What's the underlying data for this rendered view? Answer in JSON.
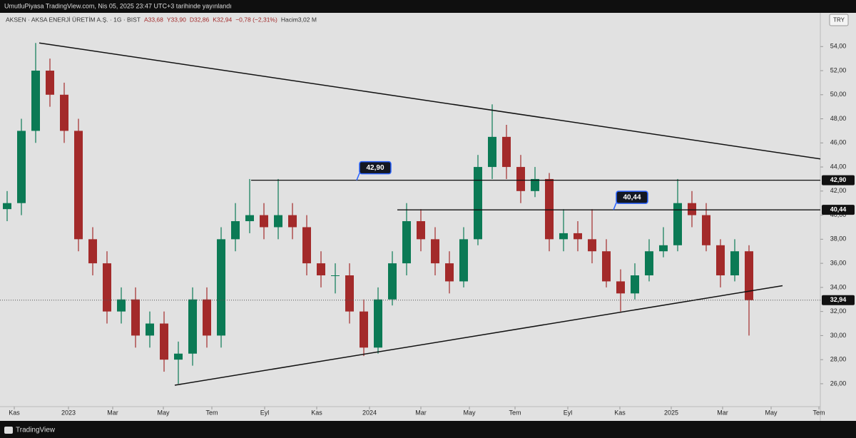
{
  "top_bar": "UmutluPiyasa TradingView.com, Nis 05, 2025 23:47 UTC+3 tarihinde yayınlandı",
  "brand": "TradingView",
  "chart_data": {
    "type": "candlestick",
    "symbol": "AKSEN · AKSA ENERJİ ÜRETİM A.Ş. · 1G · BIST",
    "ohlc_text": [
      "A33,68",
      "Y33,90",
      "D32,86",
      "K32,94"
    ],
    "change": "−0,78 (−2,31%)",
    "volume": "Hacim3,02 M",
    "currency": "TRY",
    "up_color": "#0b7a55",
    "down_color": "#a32a2a",
    "x": [
      0.5,
      1.5,
      2.5,
      3.5,
      4.5,
      5.5,
      6.5,
      7.5,
      8.5,
      9.5,
      10.5,
      11.5,
      12.5,
      13.5,
      14.5,
      15.5,
      16.5,
      17.5,
      18.5,
      19.5,
      20.5,
      21.5,
      22.5,
      23.5,
      24.5,
      25.5,
      26.5,
      27.5,
      28.5,
      29.5,
      30.5,
      31.5,
      32.5,
      33.5,
      34.5,
      35.5,
      36.5,
      37.5,
      38.5,
      39.5,
      40.5,
      41.5,
      42.5,
      43.5,
      44.5,
      45.5,
      46.5,
      47.5,
      48.5,
      49.5,
      50.5,
      51.5,
      52.5
    ],
    "open": [
      40.5,
      41,
      47,
      52,
      50,
      47,
      38,
      36,
      32,
      33,
      30,
      31,
      28,
      28.5,
      33,
      30,
      38,
      39.5,
      40,
      39,
      40,
      39,
      36,
      35,
      35,
      32,
      29,
      33,
      36,
      39.5,
      38,
      36,
      34.5,
      38,
      44,
      46.5,
      44,
      42,
      43,
      38,
      38.5,
      38,
      37,
      34.5,
      33.5,
      35,
      37,
      37.5,
      41,
      40,
      37.5,
      35,
      37
    ],
    "high": [
      42,
      48,
      54.3,
      53,
      51,
      48,
      39,
      37,
      34,
      34,
      32,
      32,
      29.5,
      34,
      34,
      39,
      41,
      43,
      41,
      43,
      41,
      40,
      37,
      36,
      36,
      33,
      34,
      37,
      41,
      40.5,
      39,
      37,
      39,
      45,
      49.2,
      47.5,
      45,
      44,
      43.5,
      40.5,
      39.5,
      40.5,
      38,
      35.5,
      36,
      38,
      39,
      43,
      42,
      41,
      38,
      38,
      37.5
    ],
    "low": [
      39.5,
      40,
      46,
      49,
      46,
      37,
      35,
      31,
      31,
      29,
      29,
      27,
      26,
      27.5,
      29,
      29,
      37,
      38.5,
      38,
      38,
      38,
      35,
      34,
      33.5,
      31,
      28.3,
      28.5,
      32.5,
      35,
      37,
      35,
      33.5,
      34,
      37.5,
      43,
      43,
      41,
      41.5,
      37,
      37,
      37,
      36,
      34,
      32,
      33,
      34.5,
      36.5,
      37,
      39,
      37,
      34,
      34.5,
      30
    ],
    "close": [
      41,
      47,
      52,
      50,
      47,
      38,
      36,
      32,
      33,
      30,
      31,
      28,
      28.5,
      33,
      30,
      38,
      39.5,
      40,
      39,
      40,
      39,
      36,
      35,
      35,
      32,
      29,
      33,
      36,
      39.5,
      38,
      36,
      34.5,
      38,
      44,
      46.5,
      44,
      42,
      43,
      38,
      38.5,
      38,
      37,
      34.5,
      33.5,
      35,
      37,
      37.5,
      41,
      40,
      37.5,
      35,
      37,
      32.94
    ],
    "xlim": [
      0,
      57.5
    ],
    "ylim": [
      24.1,
      56.8
    ],
    "yticks": [
      {
        "value": 26,
        "label": "26,00"
      },
      {
        "value": 28,
        "label": "28,00"
      },
      {
        "value": 30,
        "label": "30,00"
      },
      {
        "value": 32,
        "label": "32,00"
      },
      {
        "value": 34,
        "label": "34,00"
      },
      {
        "value": 36,
        "label": "36,00"
      },
      {
        "value": 38,
        "label": "38,00"
      },
      {
        "value": 40,
        "label": "40,00"
      },
      {
        "value": 42,
        "label": "42,00"
      },
      {
        "value": 44,
        "label": "44,00"
      },
      {
        "value": 46,
        "label": "46,00"
      },
      {
        "value": 48,
        "label": "48,00"
      },
      {
        "value": 50,
        "label": "50,00"
      },
      {
        "value": 52,
        "label": "52,00"
      },
      {
        "value": 54,
        "label": "54,00"
      }
    ],
    "xticks": [
      {
        "value": 1.0,
        "label": "Kas"
      },
      {
        "value": 4.8,
        "label": "2023"
      },
      {
        "value": 7.9,
        "label": "Mar"
      },
      {
        "value": 11.45,
        "label": "May"
      },
      {
        "value": 14.85,
        "label": "Tem"
      },
      {
        "value": 18.55,
        "label": "Eyl"
      },
      {
        "value": 22.2,
        "label": "Kas"
      },
      {
        "value": 25.9,
        "label": "2024"
      },
      {
        "value": 29.5,
        "label": "Mar"
      },
      {
        "value": 32.9,
        "label": "May"
      },
      {
        "value": 36.1,
        "label": "Tem"
      },
      {
        "value": 39.8,
        "label": "Eyl"
      },
      {
        "value": 43.45,
        "label": "Kas"
      },
      {
        "value": 47.05,
        "label": "2025"
      },
      {
        "value": 50.65,
        "label": "Mar"
      },
      {
        "value": 54.05,
        "label": "May"
      },
      {
        "value": 57.4,
        "label": "Tem"
      }
    ],
    "trendlines": [
      {
        "x": [
          2.75,
          57.5
        ],
        "y": [
          54.3,
          44.67
        ]
      },
      {
        "x": [
          12.25,
          54.85
        ],
        "y": [
          25.88,
          34.14
        ]
      }
    ],
    "levels": [
      {
        "value": 42.9,
        "label": "42,90",
        "from": 17.6,
        "callout_x": 25.2
      },
      {
        "value": 40.44,
        "label": "40,44",
        "from": 27.85,
        "callout_x": 43.2
      }
    ],
    "last_price": {
      "value": 32.94,
      "label": "32,94"
    }
  }
}
